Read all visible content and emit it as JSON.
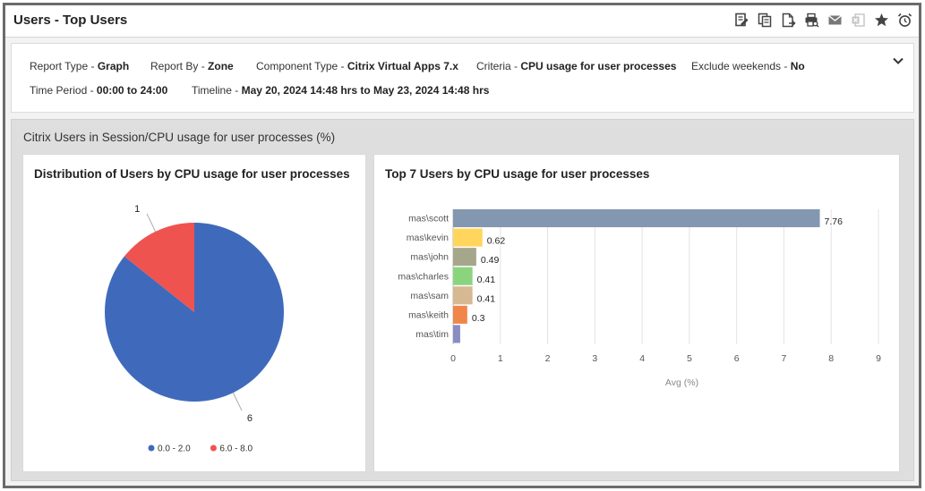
{
  "window": {
    "title": "Users - Top Users"
  },
  "toolbar": {
    "buttons": [
      {
        "icon": "edit-report-icon"
      },
      {
        "icon": "copy-report-icon"
      },
      {
        "icon": "export-pdf-icon"
      },
      {
        "icon": "print-preview-icon"
      },
      {
        "icon": "mail-icon"
      },
      {
        "icon": "excel-icon"
      },
      {
        "icon": "star-icon"
      },
      {
        "icon": "alarm-icon"
      }
    ]
  },
  "criteria": {
    "report_type": {
      "label": "Report Type - ",
      "value": "Graph"
    },
    "report_by": {
      "label": "Report By - ",
      "value": "Zone"
    },
    "component_type": {
      "label": "Component Type - ",
      "value": "Citrix Virtual Apps 7.x"
    },
    "criteria": {
      "label": "Criteria - ",
      "value": "CPU usage for user processes"
    },
    "exclude_weekends": {
      "label": "Exclude weekends - ",
      "value": "No"
    },
    "time_period": {
      "label": "Time Period - ",
      "value": "00:00 to 24:00"
    },
    "timeline": {
      "label": "Timeline - ",
      "value": "May 20, 2024 14:48 hrs to May 23, 2024 14:48 hrs"
    }
  },
  "section": {
    "title": "Citrix Users in Session/CPU usage for user processes (%)"
  },
  "pie_card": {
    "title": "Distribution of Users by CPU usage for user processes"
  },
  "bar_card": {
    "title": "Top 7 Users by CPU usage for user processes"
  },
  "colors": {
    "pie_low": "#3f6abc",
    "pie_high": "#ef5350",
    "bars": [
      "#8497b0",
      "#ffd55c",
      "#a6a68c",
      "#8bd47e",
      "#d6b893",
      "#f0864a",
      "#8a8cc4"
    ]
  },
  "chart_data": [
    {
      "type": "pie",
      "title": "Distribution of Users by CPU usage for user processes",
      "categories": [
        "0.0 - 2.0",
        "6.0 - 8.0"
      ],
      "values": [
        6,
        1
      ],
      "legend": "bottom"
    },
    {
      "type": "bar",
      "orientation": "horizontal",
      "title": "Top 7 Users by CPU usage for user processes",
      "categories": [
        "mas\\scott",
        "mas\\kevin",
        "mas\\john",
        "mas\\charles",
        "mas\\sam",
        "mas\\keith",
        "mas\\tim"
      ],
      "values": [
        7.76,
        0.62,
        0.49,
        0.41,
        0.41,
        0.3,
        0.15
      ],
      "data_labels": [
        "7.76",
        "0.62",
        "0.49",
        "0.41",
        "0.41",
        "0.3",
        ""
      ],
      "xlabel": "Avg (%)",
      "xlim": [
        0,
        9
      ],
      "xticks": [
        0,
        1,
        2,
        3,
        4,
        5,
        6,
        7,
        8,
        9
      ],
      "grid": true
    }
  ]
}
